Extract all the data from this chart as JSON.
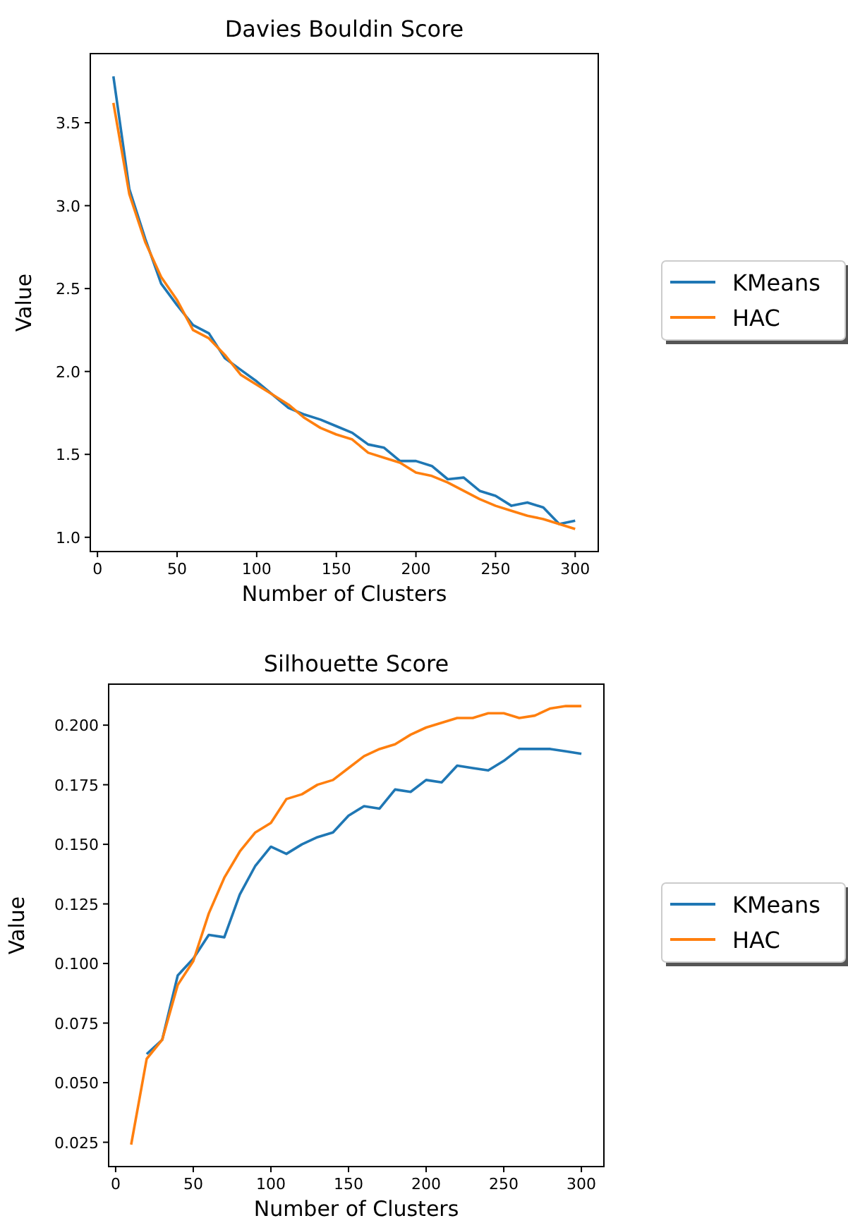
{
  "chart_data": [
    {
      "type": "line",
      "title": "Davies Bouldin Score",
      "xlabel": "Number of Clusters",
      "ylabel": "Value",
      "x": [
        10,
        20,
        30,
        40,
        50,
        60,
        70,
        80,
        90,
        100,
        110,
        120,
        130,
        140,
        150,
        160,
        170,
        180,
        190,
        200,
        210,
        220,
        230,
        240,
        250,
        260,
        270,
        280,
        290,
        300
      ],
      "series": [
        {
          "name": "KMeans",
          "color": "#1f77b4",
          "values": [
            3.78,
            3.1,
            2.8,
            2.53,
            2.4,
            2.28,
            2.23,
            2.08,
            2.01,
            1.94,
            1.86,
            1.78,
            1.74,
            1.71,
            1.67,
            1.63,
            1.56,
            1.54,
            1.46,
            1.46,
            1.43,
            1.35,
            1.36,
            1.28,
            1.25,
            1.19,
            1.21,
            1.18,
            1.08,
            1.1
          ]
        },
        {
          "name": "HAC",
          "color": "#ff7f0e",
          "values": [
            3.62,
            3.07,
            2.78,
            2.57,
            2.43,
            2.25,
            2.2,
            2.1,
            1.98,
            1.92,
            1.86,
            1.8,
            1.72,
            1.66,
            1.62,
            1.59,
            1.51,
            1.48,
            1.45,
            1.39,
            1.37,
            1.33,
            1.28,
            1.23,
            1.19,
            1.16,
            1.13,
            1.11,
            1.08,
            1.05
          ]
        }
      ],
      "xlim": [
        -4.5,
        314.5
      ],
      "xticks": [
        0,
        50,
        100,
        150,
        200,
        250,
        300
      ],
      "ylim": [
        0.914,
        3.917
      ],
      "yticks": [
        {
          "value": 1,
          "label": "1.0"
        },
        1.5,
        {
          "value": 2,
          "label": "2.0"
        },
        2.5,
        {
          "value": 3,
          "label": "3.0"
        },
        3.5
      ],
      "grid": false,
      "legend": "right",
      "marker": "none",
      "line_style": "solid"
    },
    {
      "type": "line",
      "title": "Silhouette Score",
      "xlabel": "Number of Clusters",
      "ylabel": "Value",
      "x": [
        10,
        20,
        30,
        40,
        50,
        60,
        70,
        80,
        90,
        100,
        110,
        120,
        130,
        140,
        150,
        160,
        170,
        180,
        190,
        200,
        210,
        220,
        230,
        240,
        250,
        260,
        270,
        280,
        290,
        300
      ],
      "series": [
        {
          "name": "KMeans",
          "color": "#1f77b4",
          "values": [
            null,
            0.062,
            0.068,
            0.095,
            0.102,
            0.112,
            0.111,
            0.129,
            0.141,
            0.149,
            0.146,
            0.15,
            0.153,
            0.155,
            0.162,
            0.166,
            0.165,
            0.173,
            0.172,
            0.177,
            0.176,
            0.183,
            0.182,
            0.181,
            0.185,
            0.19,
            0.19,
            0.19,
            0.189,
            0.188
          ]
        },
        {
          "name": "HAC",
          "color": "#ff7f0e",
          "values": [
            0.024,
            0.06,
            0.068,
            0.091,
            0.101,
            0.121,
            0.136,
            0.147,
            0.155,
            0.159,
            0.169,
            0.171,
            0.175,
            0.177,
            0.182,
            0.187,
            0.19,
            0.192,
            0.196,
            0.199,
            0.201,
            0.203,
            0.203,
            0.205,
            0.205,
            0.203,
            0.204,
            0.207,
            0.208,
            0.208
          ]
        }
      ],
      "xlim": [
        -4.5,
        314.5
      ],
      "xticks": [
        0,
        50,
        100,
        150,
        200,
        250,
        300
      ],
      "ylim": [
        0.0148,
        0.2172
      ],
      "yticks": [
        0.025,
        {
          "value": 0.05,
          "label": "0.050"
        },
        0.075,
        {
          "value": 0.1,
          "label": "0.100"
        },
        0.125,
        {
          "value": 0.15,
          "label": "0.150"
        },
        0.175,
        {
          "value": 0.2,
          "label": "0.200"
        }
      ],
      "grid": false,
      "legend": "right",
      "marker": "none",
      "line_style": "solid"
    }
  ]
}
